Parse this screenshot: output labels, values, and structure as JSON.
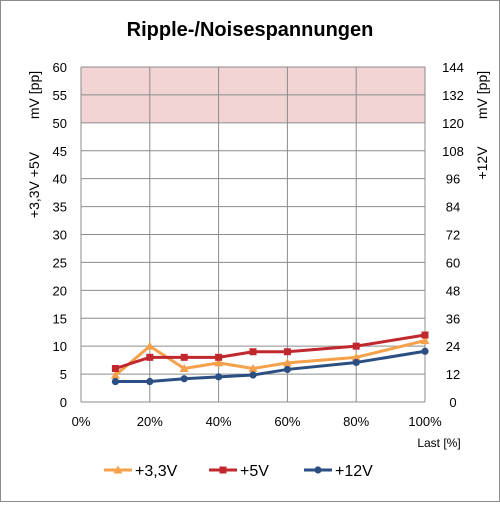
{
  "chart_data": {
    "type": "line",
    "title": "Ripple-/Noisespannungen",
    "xlabel": "Last [%]",
    "ylabel_left": "+3,3V +5V",
    "ylabel_left_unit": "mV [pp]",
    "ylabel_right": "+12V",
    "ylabel_right_unit": "mV [pp]",
    "x_ticks": [
      "0%",
      "20%",
      "40%",
      "60%",
      "80%",
      "100%"
    ],
    "xlim": [
      0,
      100
    ],
    "ylim_left": [
      0,
      60
    ],
    "ylim_right": [
      0,
      144
    ],
    "y_ticks_left": [
      "0",
      "5",
      "10",
      "15",
      "20",
      "25",
      "30",
      "35",
      "40",
      "45",
      "50",
      "55",
      "60"
    ],
    "y_ticks_right": [
      "0",
      "12",
      "24",
      "36",
      "48",
      "60",
      "72",
      "84",
      "96",
      "108",
      "120",
      "132",
      "144"
    ],
    "limit_band_left": [
      50,
      60
    ],
    "limit_band_color": "#f2d4d4",
    "grid": true,
    "legend_position": "bottom",
    "x": [
      10,
      20,
      30,
      40,
      50,
      60,
      80,
      100
    ],
    "series": [
      {
        "name": "+3,3V",
        "axis": "left",
        "color": "#f5a04a",
        "marker": "triangle",
        "values": [
          4.8,
          10.0,
          6.0,
          7.0,
          6.0,
          7.0,
          8.0,
          11.0
        ]
      },
      {
        "name": "+5V",
        "axis": "left",
        "color": "#c0282d",
        "marker": "square",
        "values": [
          6.0,
          8.0,
          8.0,
          8.0,
          9.0,
          9.0,
          10.0,
          12.0
        ]
      },
      {
        "name": "+12V",
        "axis": "right",
        "color": "#2b4f82",
        "marker": "circle",
        "values": [
          8.8,
          8.8,
          10.0,
          10.8,
          11.6,
          14.0,
          17.0,
          21.8
        ]
      }
    ]
  }
}
